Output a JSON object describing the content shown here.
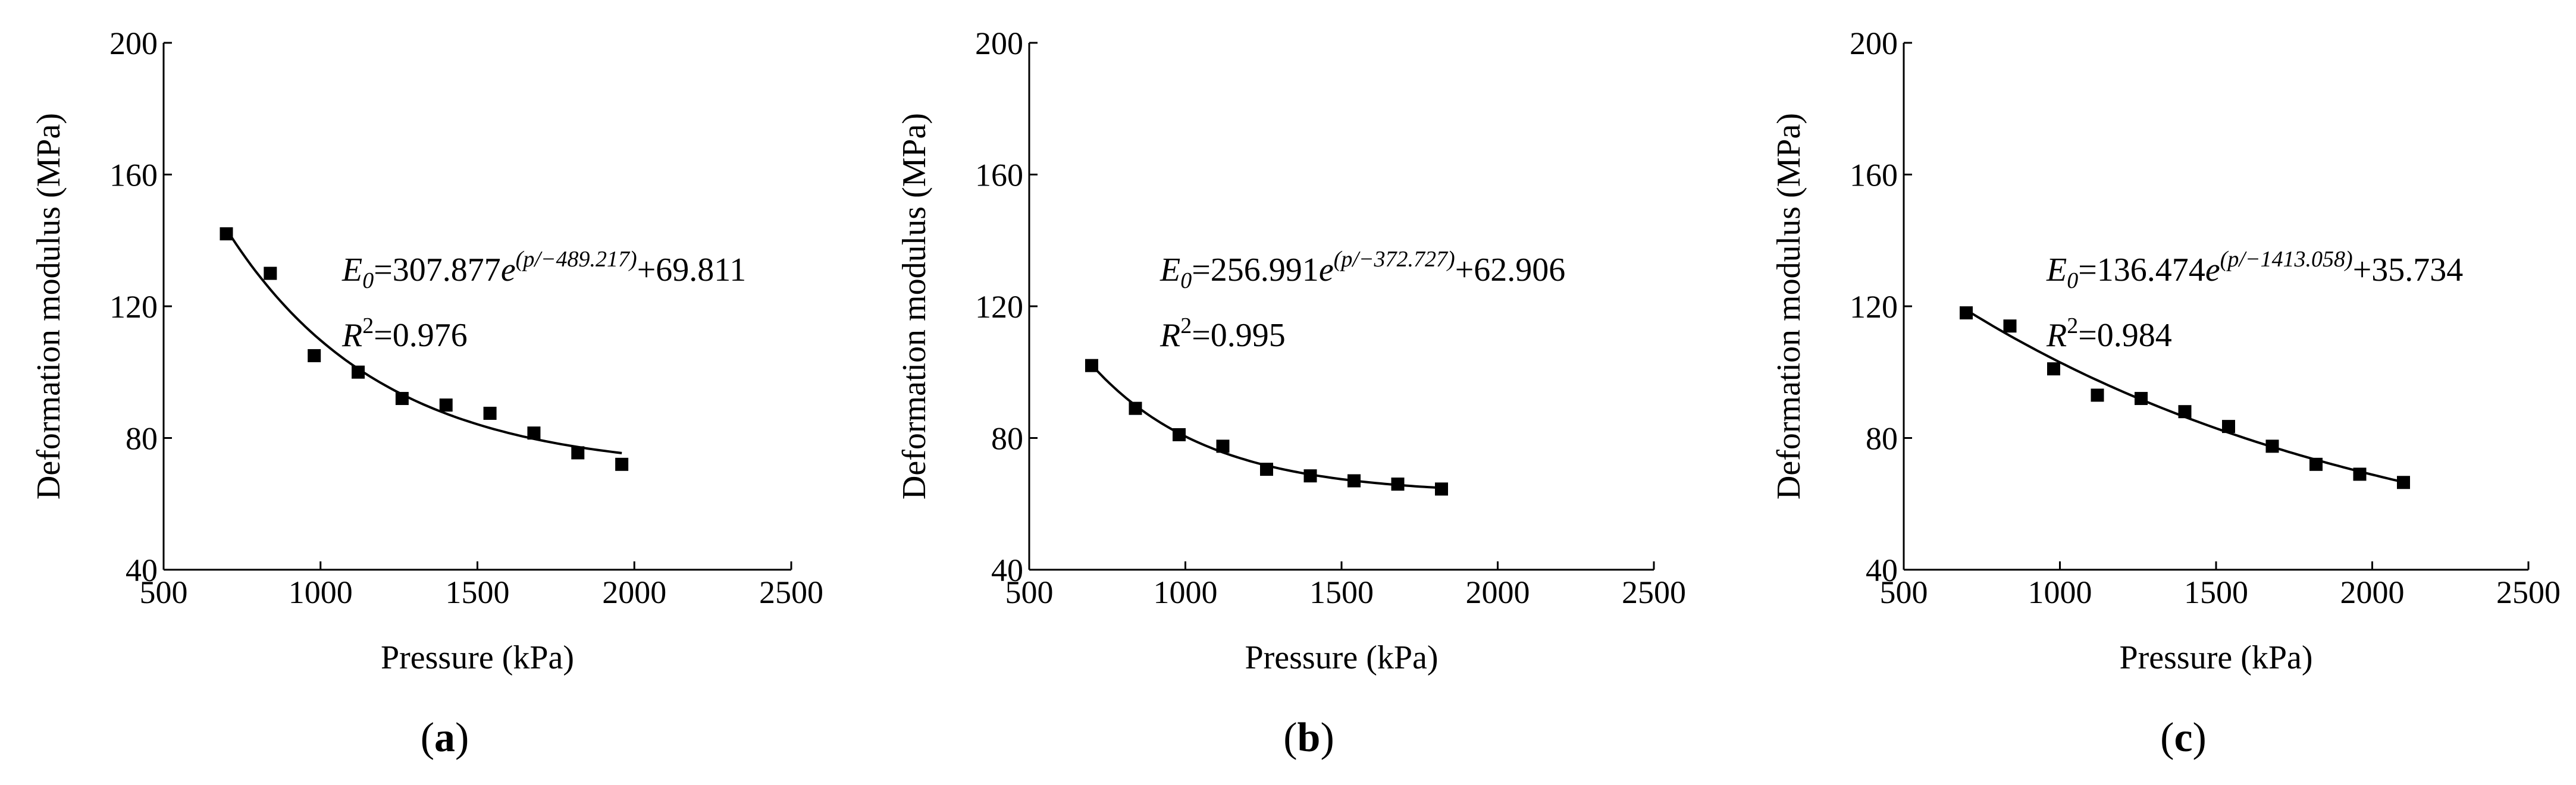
{
  "chart_data": [
    {
      "type": "scatter",
      "panel_label": "a",
      "xlabel": "Pressure (kPa)",
      "ylabel": "Deformation modulus (MPa)",
      "xlim": [
        500,
        2500
      ],
      "ylim": [
        40,
        200
      ],
      "xticks": [
        500,
        1000,
        1500,
        2000,
        2500
      ],
      "yticks": [
        40,
        80,
        120,
        160,
        200
      ],
      "x": [
        700,
        840,
        980,
        1120,
        1260,
        1400,
        1540,
        1680,
        1820,
        1960
      ],
      "y": [
        142,
        130,
        105,
        100,
        92,
        90,
        87.5,
        81.5,
        75.5,
        72
      ],
      "fit": {
        "amplitude": 307.877,
        "scale": -489.217,
        "offset": 69.811,
        "x_start": 700,
        "x_end": 1960,
        "equation": {
          "lhs": "E",
          "sub": "0",
          "eq_coef": "=307.877",
          "exp_base": "e",
          "exponent": "(p/−489.217)",
          "suffix": "+69.811"
        },
        "r2": {
          "lhs": "R",
          "sup": "2",
          "value": "=0.976"
        }
      }
    },
    {
      "type": "scatter",
      "panel_label": "b",
      "xlabel": "Pressure (kPa)",
      "ylabel": "Deformation modulus (MPa)",
      "xlim": [
        500,
        2500
      ],
      "ylim": [
        40,
        200
      ],
      "xticks": [
        500,
        1000,
        1500,
        2000,
        2500
      ],
      "yticks": [
        40,
        80,
        120,
        160,
        200
      ],
      "x": [
        700,
        840,
        980,
        1120,
        1260,
        1400,
        1540,
        1680,
        1820
      ],
      "y": [
        102,
        89,
        81,
        77.5,
        70.5,
        68.5,
        67,
        66,
        64.5
      ],
      "fit": {
        "amplitude": 256.991,
        "scale": -372.727,
        "offset": 62.906,
        "x_start": 700,
        "x_end": 1820,
        "equation": {
          "lhs": "E",
          "sub": "0",
          "eq_coef": "=256.991",
          "exp_base": "e",
          "exponent": "(p/−372.727)",
          "suffix": "+62.906"
        },
        "r2": {
          "lhs": "R",
          "sup": "2",
          "value": "=0.995"
        }
      }
    },
    {
      "type": "scatter",
      "panel_label": "c",
      "xlabel": "Pressure (kPa)",
      "ylabel": "Deformation modulus (MPa)",
      "xlim": [
        500,
        2500
      ],
      "ylim": [
        40,
        200
      ],
      "xticks": [
        500,
        1000,
        1500,
        2000,
        2500
      ],
      "yticks": [
        40,
        80,
        120,
        160,
        200
      ],
      "x": [
        700,
        840,
        980,
        1120,
        1260,
        1400,
        1540,
        1680,
        1820,
        1960,
        2100
      ],
      "y": [
        118,
        114,
        101,
        93,
        92,
        88,
        83.5,
        77.5,
        72,
        69,
        66.5
      ],
      "fit": {
        "amplitude": 136.474,
        "scale": -1413.058,
        "offset": 35.734,
        "x_start": 700,
        "x_end": 2100,
        "equation": {
          "lhs": "E",
          "sub": "0",
          "eq_coef": "=136.474",
          "exp_base": "e",
          "exponent": "(p/−1413.058)",
          "suffix": "+35.734"
        },
        "r2": {
          "lhs": "R",
          "sup": "2",
          "value": "=0.984"
        }
      }
    }
  ]
}
